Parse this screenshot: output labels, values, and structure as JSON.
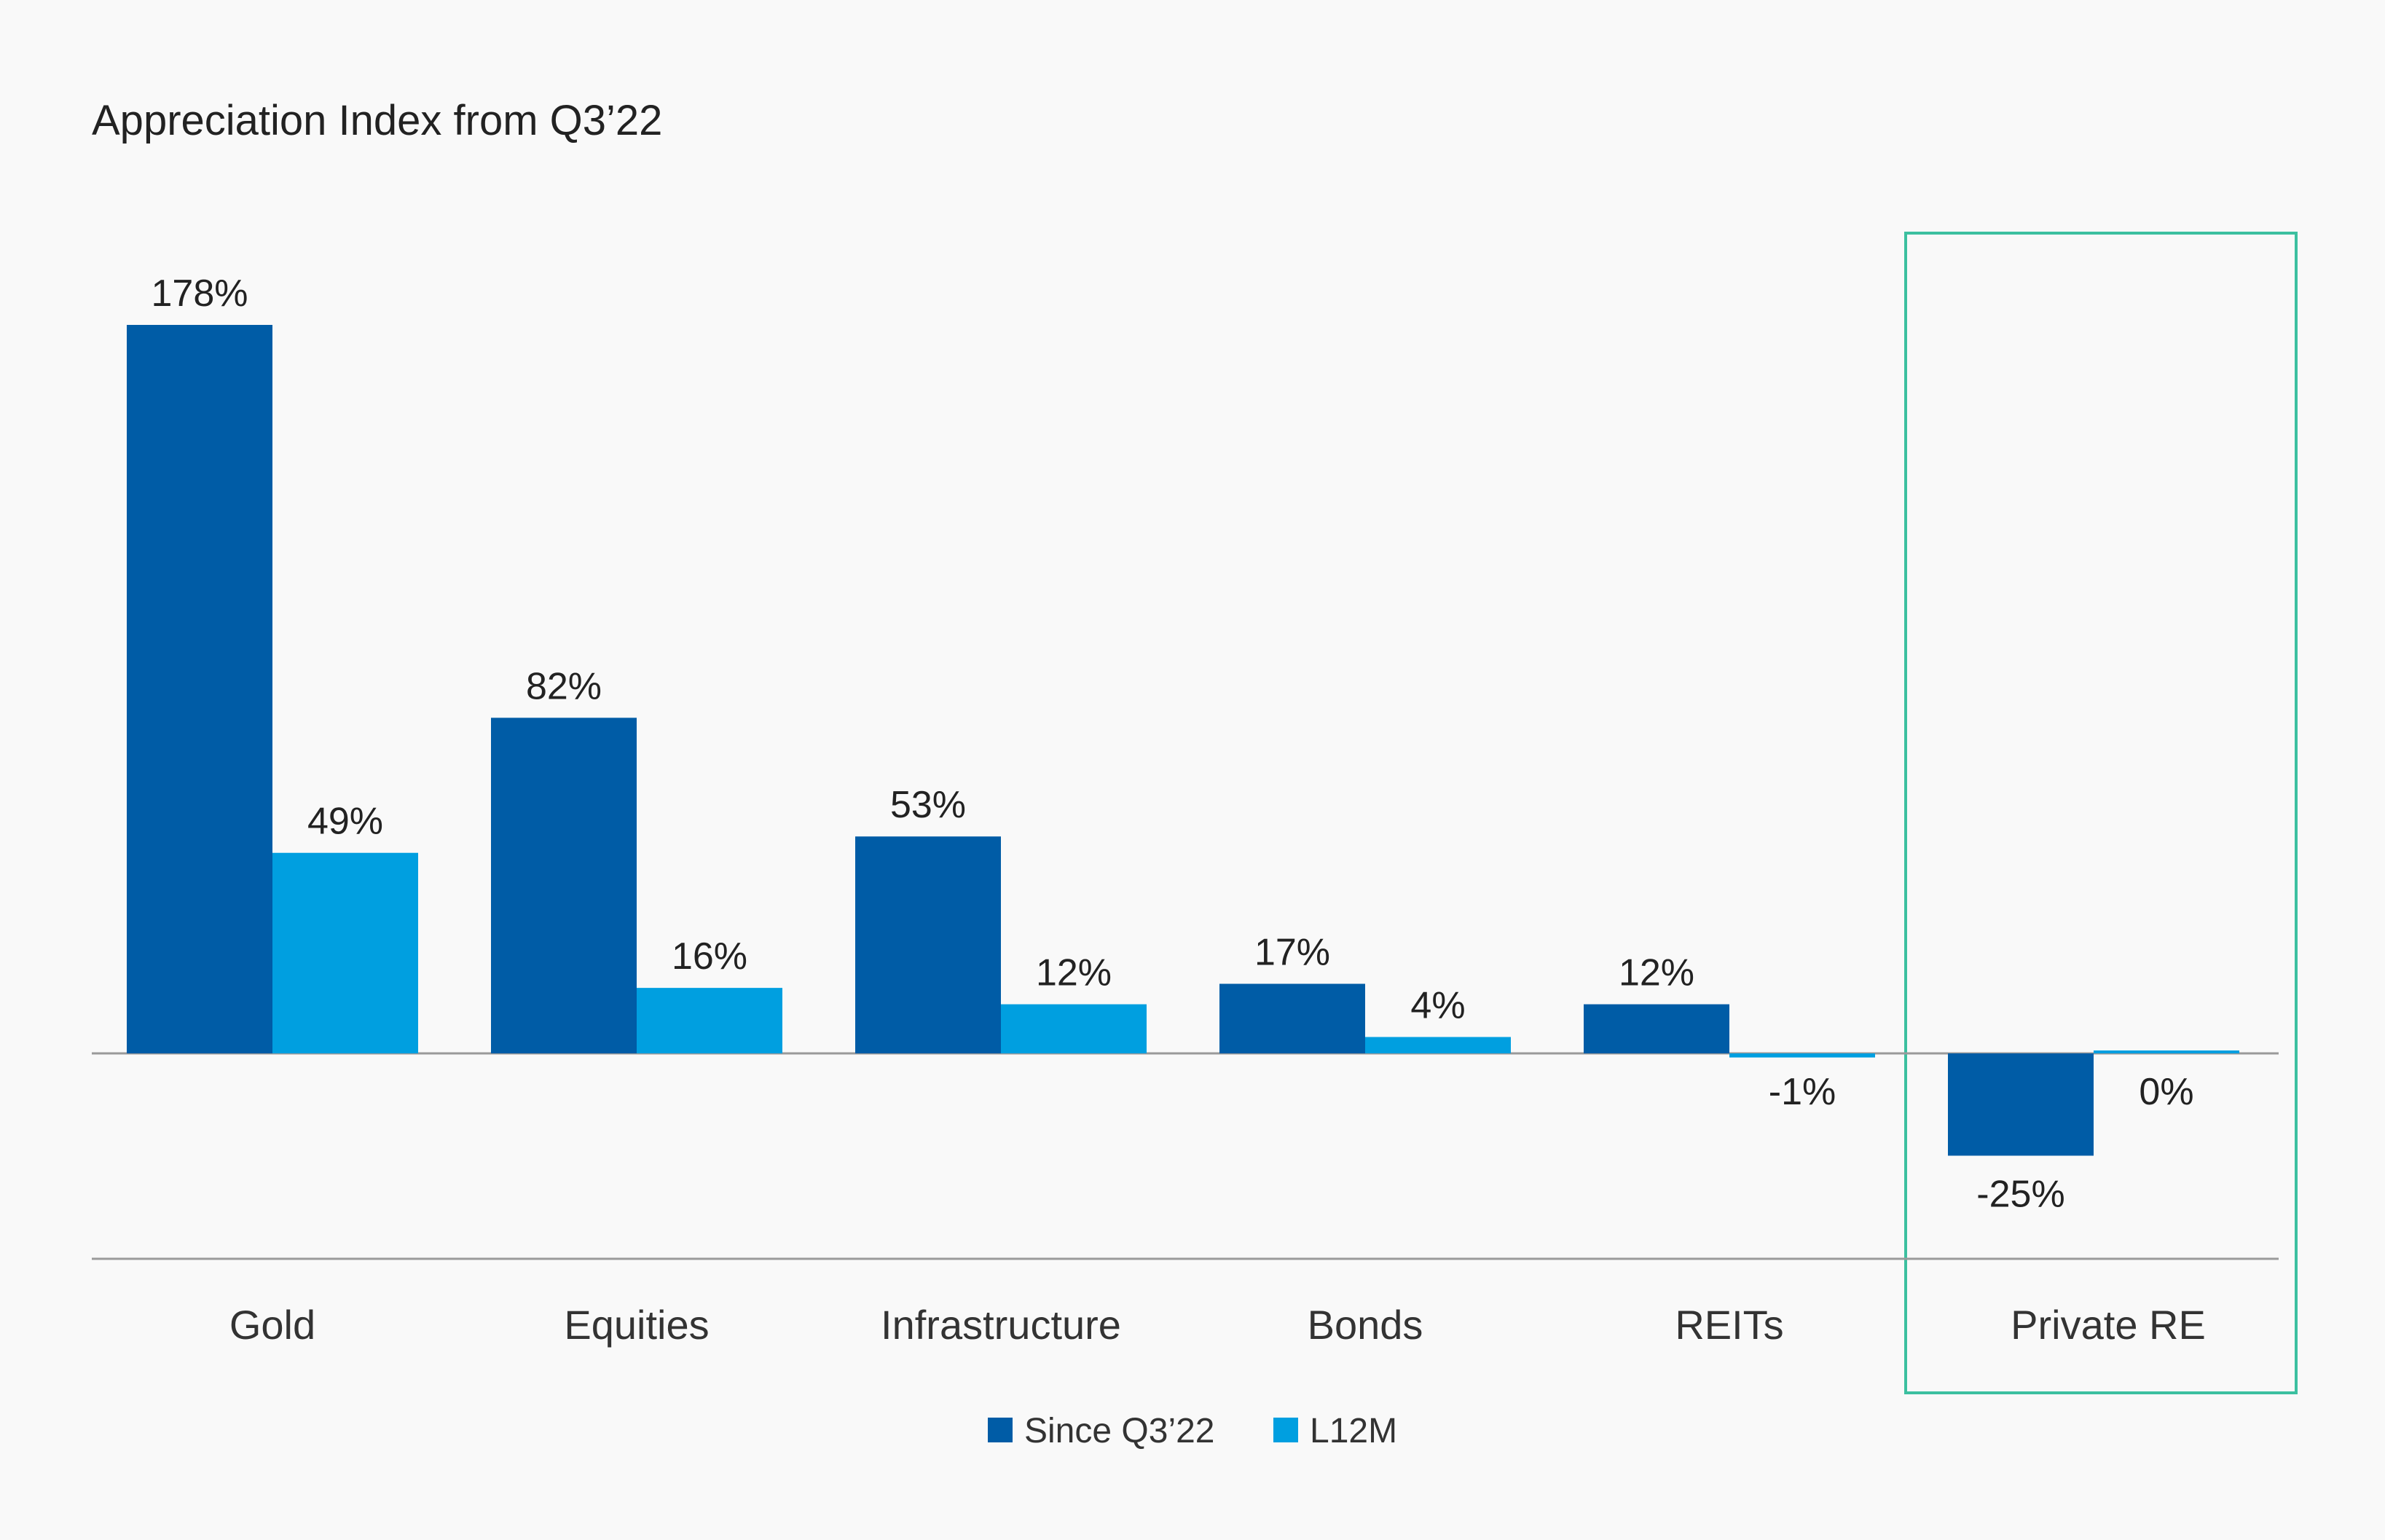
{
  "chart_data": {
    "type": "bar",
    "title": "Appreciation Index from Q3’22",
    "xlabel": "",
    "ylabel": "",
    "categories": [
      "Gold",
      "Equities",
      "Infrastructure",
      "Bonds",
      "REITs",
      "Private RE"
    ],
    "series": [
      {
        "name": "Since Q3’22",
        "values": [
          178,
          82,
          53,
          17,
          12,
          -25
        ],
        "labels": [
          "178%",
          "82%",
          "53%",
          "17%",
          "12%",
          "-25%"
        ]
      },
      {
        "name": "L12M",
        "values": [
          49,
          16,
          12,
          4,
          -1,
          0
        ],
        "labels": [
          "49%",
          "16%",
          "12%",
          "4%",
          "-1%",
          "0%"
        ]
      }
    ],
    "ylim": [
      -50,
      178
    ],
    "grid": false,
    "legend_position": "bottom-center",
    "highlighted_category": "Private RE",
    "colors": {
      "series": [
        "#005ca6",
        "#009fe0"
      ],
      "highlight_box": "#3cc0a0",
      "axis": "#9a9a9a"
    }
  }
}
